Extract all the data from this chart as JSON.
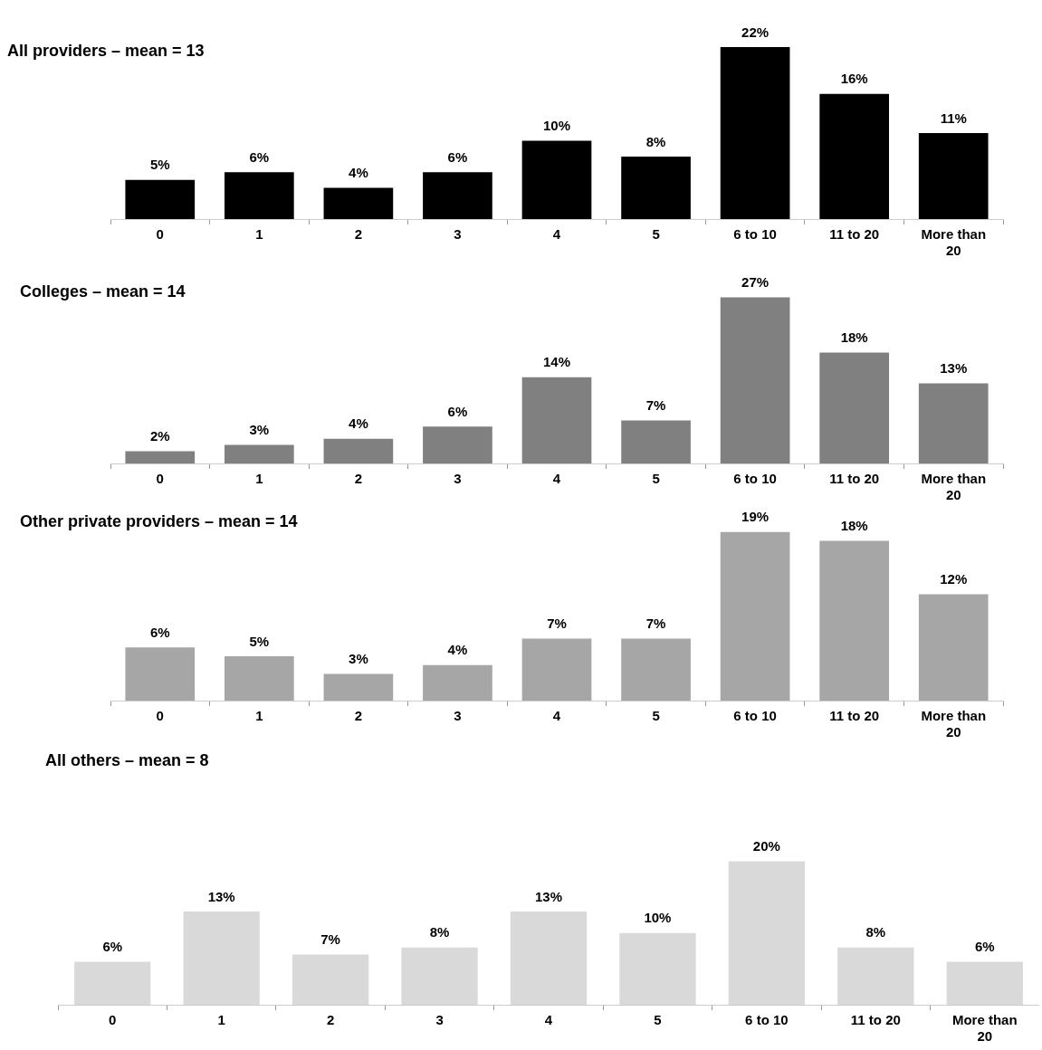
{
  "chart_data": [
    {
      "type": "bar",
      "title": "All providers – mean = 13",
      "categories": [
        "0",
        "1",
        "2",
        "3",
        "4",
        "5",
        "6 to 10",
        "11 to 20",
        "More than 20"
      ],
      "color": "#000000",
      "values": [
        5,
        6,
        4,
        6,
        10,
        8,
        22,
        16,
        11
      ],
      "value_labels": [
        "5%",
        "6%",
        "4%",
        "6%",
        "10%",
        "8%",
        "22%",
        "16%",
        "11%"
      ]
    },
    {
      "type": "bar",
      "title": "Colleges – mean = 14",
      "categories": [
        "0",
        "1",
        "2",
        "3",
        "4",
        "5",
        "6 to 10",
        "11 to 20",
        "More than 20"
      ],
      "color": "#808080",
      "values": [
        2,
        3,
        4,
        6,
        14,
        7,
        27,
        18,
        13
      ],
      "value_labels": [
        "2%",
        "3%",
        "4%",
        "6%",
        "14%",
        "7%",
        "27%",
        "18%",
        "13%"
      ]
    },
    {
      "type": "bar",
      "title": "Other private providers – mean = 14",
      "categories": [
        "0",
        "1",
        "2",
        "3",
        "4",
        "5",
        "6 to 10",
        "11 to 20",
        "More than 20"
      ],
      "color": "#a6a6a6",
      "values": [
        6,
        5,
        3,
        4,
        7,
        7,
        19,
        18,
        12
      ],
      "value_labels": [
        "6%",
        "5%",
        "3%",
        "4%",
        "7%",
        "7%",
        "19%",
        "18%",
        "12%"
      ]
    },
    {
      "type": "bar",
      "title": "All others – mean = 8",
      "categories": [
        "0",
        "1",
        "2",
        "3",
        "4",
        "5",
        "6 to 10",
        "11 to 20",
        "More than 20"
      ],
      "color": "#d9d9d9",
      "values": [
        6,
        13,
        7,
        8,
        13,
        10,
        20,
        8,
        6
      ],
      "value_labels": [
        "6%",
        "13%",
        "7%",
        "8%",
        "13%",
        "10%",
        "20%",
        "8%",
        "6%"
      ]
    }
  ]
}
